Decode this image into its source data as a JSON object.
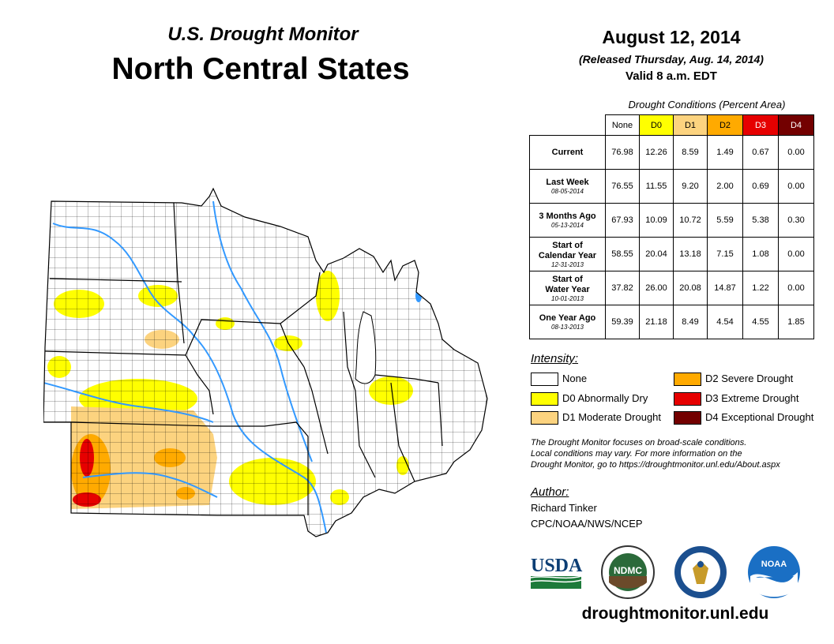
{
  "header": {
    "supertitle": "U.S. Drought Monitor",
    "title": "North Central States",
    "date": "August 12, 2014",
    "released": "(Released Thursday, Aug. 14, 2014)",
    "valid": "Valid 8 a.m. EDT"
  },
  "table": {
    "caption": "Drought Conditions (Percent Area)",
    "columns": [
      "None",
      "D0",
      "D1",
      "D2",
      "D3",
      "D4"
    ],
    "column_colors": [
      "#ffffff",
      "#ffff00",
      "#fcd37f",
      "#ffaa00",
      "#e60000",
      "#730000"
    ],
    "rows": [
      {
        "label": "Current",
        "label2": "",
        "date": "",
        "values": [
          "76.98",
          "12.26",
          "8.59",
          "1.49",
          "0.67",
          "0.00"
        ]
      },
      {
        "label": "Last Week",
        "label2": "",
        "date": "08-05-2014",
        "values": [
          "76.55",
          "11.55",
          "9.20",
          "2.00",
          "0.69",
          "0.00"
        ]
      },
      {
        "label": "3 Months Ago",
        "label2": "",
        "date": "05-13-2014",
        "values": [
          "67.93",
          "10.09",
          "10.72",
          "5.59",
          "5.38",
          "0.30"
        ]
      },
      {
        "label": "Start of",
        "label2": "Calendar Year",
        "date": "12-31-2013",
        "values": [
          "58.55",
          "20.04",
          "13.18",
          "7.15",
          "1.08",
          "0.00"
        ]
      },
      {
        "label": "Start of",
        "label2": "Water Year",
        "date": "10-01-2013",
        "values": [
          "37.82",
          "26.00",
          "20.08",
          "14.87",
          "1.22",
          "0.00"
        ]
      },
      {
        "label": "One Year Ago",
        "label2": "",
        "date": "08-13-2013",
        "values": [
          "59.39",
          "21.18",
          "8.49",
          "4.54",
          "4.55",
          "1.85"
        ]
      }
    ]
  },
  "legend": {
    "title": "Intensity:",
    "items": [
      {
        "label": "None",
        "color": "#ffffff"
      },
      {
        "label": "D0 Abnormally Dry",
        "color": "#ffff00"
      },
      {
        "label": "D1 Moderate Drought",
        "color": "#fcd37f"
      },
      {
        "label": "D2 Severe Drought",
        "color": "#ffaa00"
      },
      {
        "label": "D3 Extreme Drought",
        "color": "#e60000"
      },
      {
        "label": "D4 Exceptional Drought",
        "color": "#730000"
      }
    ]
  },
  "note": {
    "line1": "The Drought Monitor focuses on broad-scale conditions.",
    "line2": "Local conditions may vary. For more information on the",
    "line3": "Drought Monitor, go to https://droughtmonitor.unl.edu/About.aspx"
  },
  "author": {
    "title": "Author:",
    "name": "Richard Tinker",
    "org": "CPC/NOAA/NWS/NCEP"
  },
  "logos": {
    "usda": "USDA",
    "ndmc": "NDMC",
    "noaa": "NOAA"
  },
  "website": "droughtmonitor.unl.edu",
  "map": {
    "region": "North Central States",
    "colors": {
      "none": "#ffffff",
      "d0": "#ffff00",
      "d1": "#fcd37f",
      "d2": "#ffaa00",
      "d3": "#e60000",
      "water": "#3399ff"
    }
  }
}
